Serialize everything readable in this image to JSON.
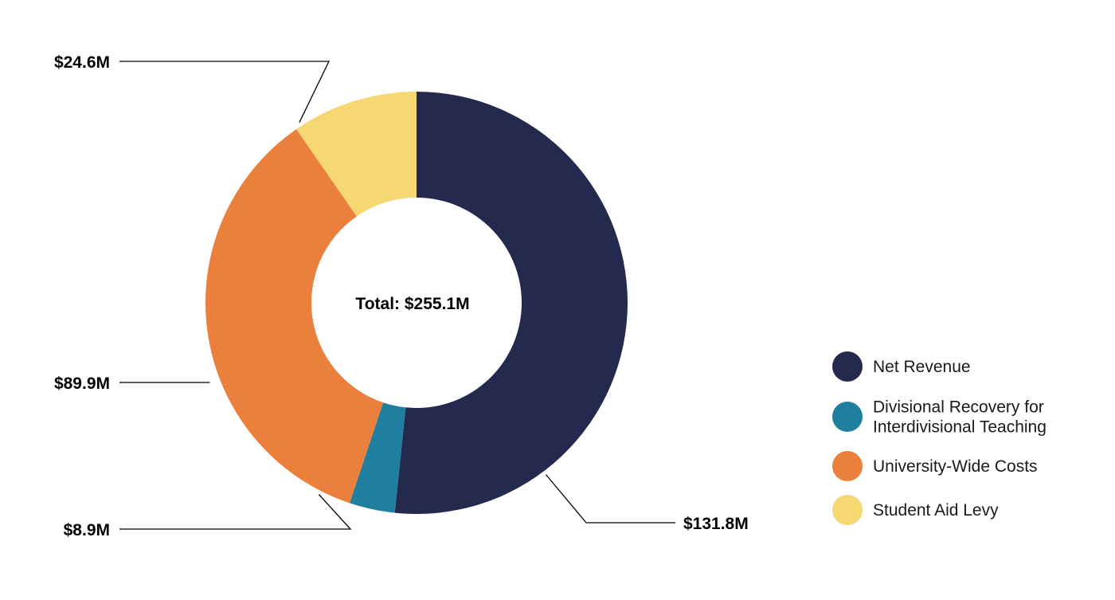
{
  "chart_data": {
    "type": "pie",
    "variant": "donut",
    "center_label": "Total: $255.1M",
    "total": 255.1,
    "slices": [
      {
        "name": "Net Revenue",
        "value": 131.8,
        "label": "$131.8M",
        "color": "#232a4e"
      },
      {
        "name": "Divisional Recovery for Interdivisional Teaching",
        "value": 8.9,
        "label": "$8.9M",
        "color": "#207e9f"
      },
      {
        "name": "University-Wide Costs",
        "value": 89.9,
        "label": "$89.9M",
        "color": "#eb803d"
      },
      {
        "name": "Student Aid Levy",
        "value": 24.6,
        "label": "$24.6M",
        "color": "#f6d873"
      }
    ],
    "legend": {
      "position": "right",
      "entries": [
        {
          "name": "Net Revenue",
          "lines": [
            "Net Revenue"
          ],
          "color": "#232a4e"
        },
        {
          "name": "Divisional Recovery for Interdivisional Teaching",
          "lines": [
            "Divisional Recovery for",
            "Interdivisional Teaching"
          ],
          "color": "#207e9f"
        },
        {
          "name": "University-Wide Costs",
          "lines": [
            "University-Wide Costs"
          ],
          "color": "#eb803d"
        },
        {
          "name": "Student Aid Levy",
          "lines": [
            "Student Aid Levy"
          ],
          "color": "#f6d873"
        }
      ]
    }
  }
}
